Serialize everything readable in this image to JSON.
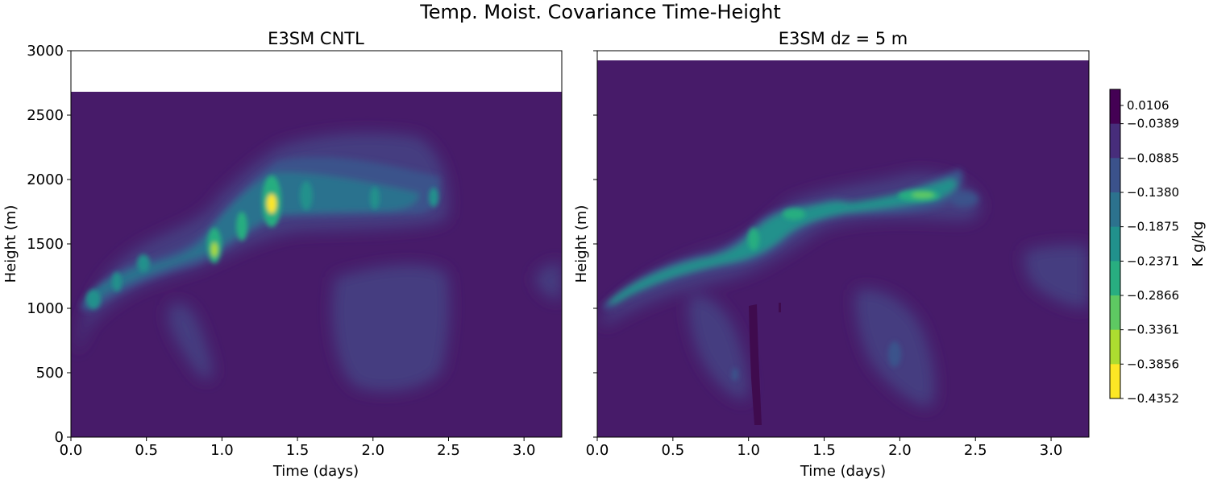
{
  "suptitle": "Temp. Moist. Covariance Time-Height",
  "chart_data": [
    {
      "type": "heatmap",
      "title": "E3SM CNTL",
      "xlabel": "Time (days)",
      "ylabel": "Height (m)",
      "xlim": [
        0.0,
        3.25
      ],
      "ylim": [
        0,
        3000
      ],
      "xticks": [
        "0.0",
        "0.5",
        "1.0",
        "1.5",
        "2.0",
        "2.5",
        "3.0"
      ],
      "yticks": [
        "0",
        "500",
        "1000",
        "1500",
        "2000",
        "2500",
        "3000"
      ],
      "data_top_height": 2680,
      "features": [
        {
          "desc": "main covariance band",
          "t": [
            0.05,
            0.15,
            0.3,
            0.5,
            0.7,
            0.95,
            1.15,
            1.35,
            1.6,
            2.0,
            2.5
          ],
          "z": [
            1000,
            1100,
            1220,
            1340,
            1380,
            1450,
            1620,
            1820,
            1830,
            1820,
            1820
          ]
        },
        {
          "desc": "peak",
          "t": 1.32,
          "z": 1800,
          "value": -0.4352
        },
        {
          "desc": "secondary peak",
          "t": 0.95,
          "z": 1460,
          "value": -0.35
        },
        {
          "desc": "weak lower patch",
          "t": [
            0.65,
            0.95
          ],
          "z": [
            380,
            950
          ]
        },
        {
          "desc": "weak lower patch",
          "t": [
            1.75,
            2.5
          ],
          "z": [
            350,
            1250
          ]
        },
        {
          "desc": "weak patch",
          "t": [
            3.05,
            3.25
          ],
          "z": [
            1050,
            1400
          ]
        }
      ]
    },
    {
      "type": "heatmap",
      "title": "E3SM dz = 5 m",
      "xlabel": "Time (days)",
      "ylabel": "Height (m)",
      "xlim": [
        0.0,
        3.25
      ],
      "ylim": [
        0,
        3000
      ],
      "xticks": [
        "0.0",
        "0.5",
        "1.0",
        "1.5",
        "2.0",
        "2.5",
        "3.0"
      ],
      "yticks": [
        "0",
        "500",
        "1000",
        "1500",
        "2000",
        "2500",
        "3000"
      ],
      "data_top_height": 2920,
      "features": [
        {
          "desc": "main covariance band",
          "t": [
            0.05,
            0.4,
            0.8,
            1.0,
            1.2,
            1.5,
            1.7,
            2.0,
            2.25,
            2.5
          ],
          "z": [
            1050,
            1320,
            1400,
            1520,
            1650,
            1830,
            1770,
            1820,
            1920,
            1800
          ]
        },
        {
          "desc": "peak",
          "t": 2.1,
          "z": 1860,
          "value": -0.25
        },
        {
          "desc": "positive streak",
          "t": [
            1.0,
            1.05
          ],
          "z": [
            100,
            1020
          ],
          "value": 0.0106
        },
        {
          "desc": "weak lower patch",
          "t": [
            0.6,
            1.0
          ],
          "z": [
            400,
            1050
          ]
        },
        {
          "desc": "weak lower patch",
          "t": [
            1.7,
            2.2
          ],
          "z": [
            250,
            1000
          ]
        },
        {
          "desc": "weak patch",
          "t": [
            2.8,
            3.25
          ],
          "z": [
            1000,
            1500
          ]
        }
      ]
    }
  ],
  "colorbar": {
    "label": "K g/kg",
    "ticks": [
      "0.0106",
      "−0.0389",
      "−0.0885",
      "−0.1380",
      "−0.1875",
      "−0.2371",
      "−0.2866",
      "−0.3361",
      "−0.3856",
      "−0.4352"
    ],
    "values": [
      0.0106,
      -0.0389,
      -0.0885,
      -0.138,
      -0.1875,
      -0.2371,
      -0.2866,
      -0.3361,
      -0.3856,
      -0.4352
    ],
    "colors": [
      "#440154",
      "#472d7b",
      "#3b528b",
      "#2c728e",
      "#21918c",
      "#28ae80",
      "#5ec962",
      "#addc30",
      "#fde725"
    ]
  }
}
